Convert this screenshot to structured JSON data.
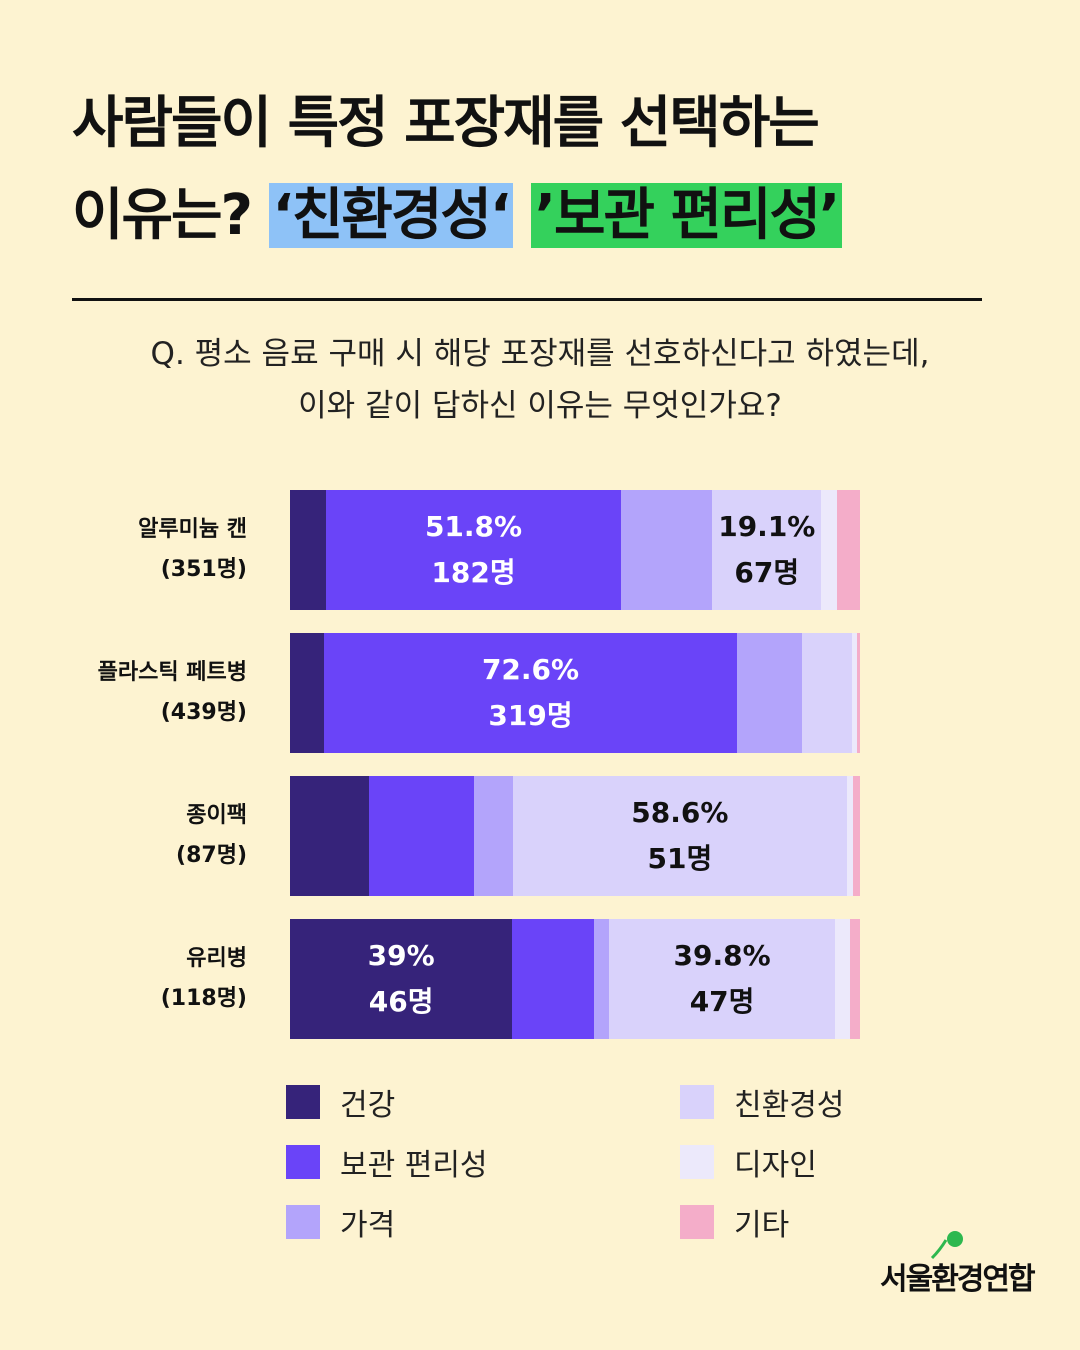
{
  "title": {
    "line1": "사람들이 특정 포장재를 선택하는",
    "line2_prefix": "이유는?",
    "highlight1": "‘친환경성‘",
    "highlight2": "’보관 편리성’"
  },
  "question": {
    "line1": "Q. 평소 음료 구매 시 해당 포장재를 선호하신다고 하였는데,",
    "line2": "이와 같이 답하신 이유는 무엇인가요?"
  },
  "colors": {
    "건강": "#36237a",
    "보관 편리성": "#6a44f8",
    "가격": "#b3a4fb",
    "친환경성": "#d9d2fb",
    "디자인": "#ece9fb",
    "기타": "#f4adc9"
  },
  "chart_data": {
    "type": "bar",
    "stacked": true,
    "orientation": "horizontal",
    "unit": "%",
    "categories": [
      "건강",
      "보관 편리성",
      "가격",
      "친환경성",
      "디자인",
      "기타"
    ],
    "rows": [
      {
        "label": "알루미늄 캔",
        "count": "(351명)",
        "values": [
          6.3,
          51.8,
          16.0,
          19.1,
          2.8,
          4.0
        ],
        "labels": [
          null,
          {
            "pct": "51.8%",
            "n": "182명"
          },
          null,
          {
            "pct": "19.1%",
            "n": "67명"
          },
          null,
          null
        ]
      },
      {
        "label": "플라스틱 페트병",
        "count": "(439명)",
        "values": [
          5.9,
          72.6,
          11.4,
          8.7,
          0.9,
          0.5
        ],
        "labels": [
          null,
          {
            "pct": "72.6%",
            "n": "319명"
          },
          null,
          null,
          null,
          null
        ]
      },
      {
        "label": "종이팩",
        "count": "(87명)",
        "values": [
          13.8,
          18.4,
          6.9,
          58.6,
          1.1,
          1.2
        ],
        "labels": [
          null,
          null,
          null,
          {
            "pct": "58.6%",
            "n": "51명"
          },
          null,
          null
        ]
      },
      {
        "label": "유리병",
        "count": "(118명)",
        "values": [
          39.0,
          14.4,
          2.5,
          39.8,
          2.6,
          1.7
        ],
        "labels": [
          {
            "pct": "39%",
            "n": "46명"
          },
          null,
          null,
          {
            "pct": "39.8%",
            "n": "47명"
          },
          null,
          null
        ]
      }
    ],
    "xlim": [
      0,
      100
    ]
  },
  "legend": [
    {
      "label": "건강",
      "color": "#36237a"
    },
    {
      "label": "보관 편리성",
      "color": "#6a44f8"
    },
    {
      "label": "가격",
      "color": "#b3a4fb"
    },
    {
      "label": "친환경성",
      "color": "#d9d2fb"
    },
    {
      "label": "디자인",
      "color": "#ece9fb"
    },
    {
      "label": "기타",
      "color": "#f4adc9"
    }
  ],
  "logo": {
    "text": "서울환경연합"
  }
}
